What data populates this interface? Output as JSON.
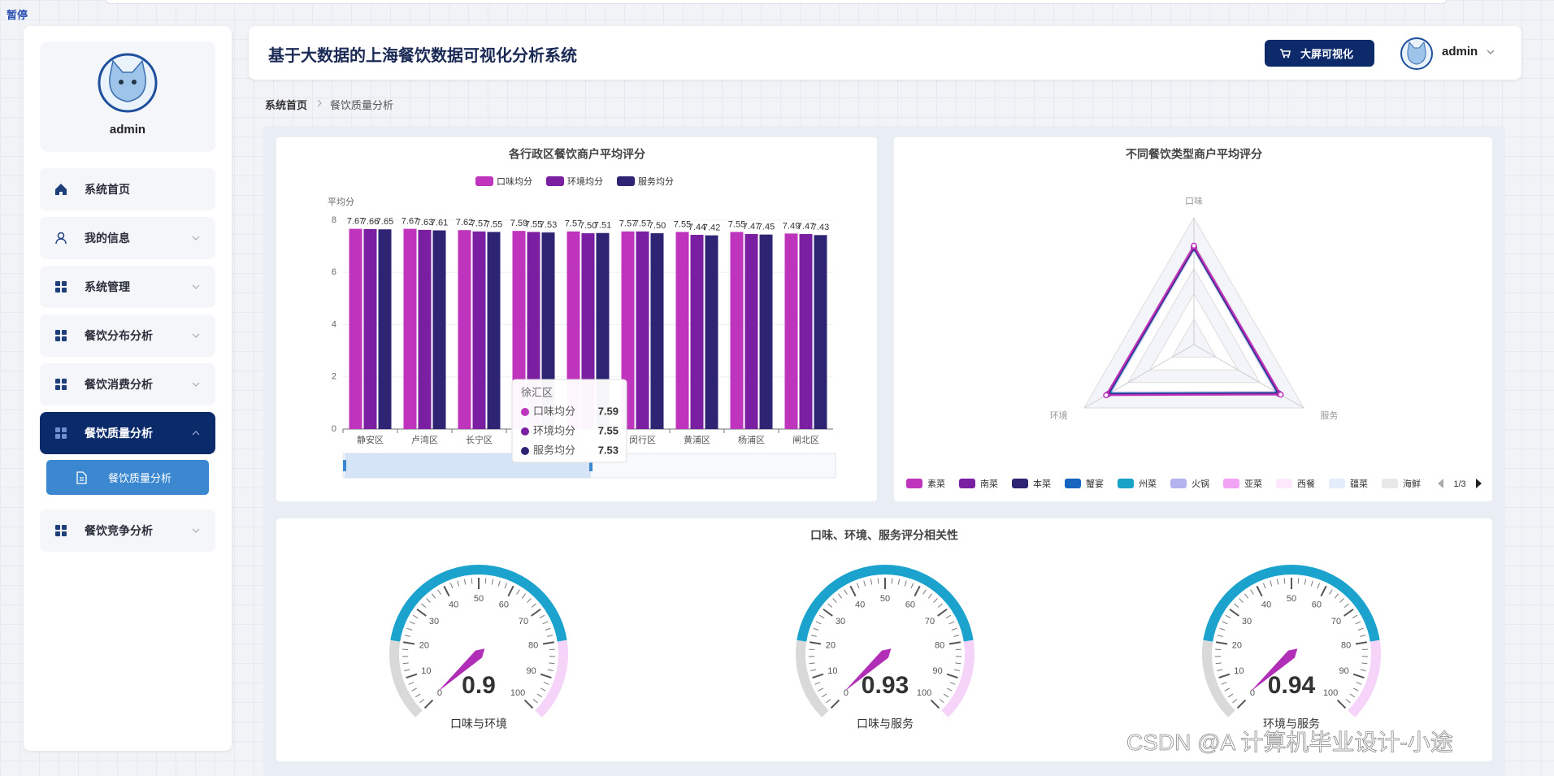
{
  "overlay_text": "暂停",
  "sidebar": {
    "username": "admin",
    "menu": [
      "系统首页",
      "我的信息",
      "系统管理",
      "餐饮分布分析",
      "餐饮消费分析",
      "餐饮质量分析",
      "餐饮竞争分析"
    ],
    "active_menu": 5,
    "submenu": [
      "餐饮质量分析"
    ]
  },
  "header": {
    "title": "基于大数据的上海餐饮数据可视化分析系统",
    "button": "大屏可视化",
    "user": "admin"
  },
  "breadcrumb": [
    "系统首页",
    "餐饮质量分析"
  ],
  "chart_data": [
    {
      "type": "bar",
      "title": "各行政区餐饮商户平均评分",
      "y_label": "平均分",
      "categories": [
        "静安区",
        "卢湾区",
        "长宁区",
        "徐汇区",
        null,
        "闵行区",
        "黄浦区",
        "杨浦区",
        "闸北区"
      ],
      "series": [
        {
          "name": "口味均分",
          "color": "#bf34bc",
          "values": [
            7.67,
            7.67,
            7.62,
            7.59,
            7.57,
            7.57,
            7.55,
            7.55,
            7.49
          ],
          "value_labels": [
            "7.67",
            "7.67",
            "7.62",
            "7.59",
            "7.57",
            "7.57",
            "7.55",
            "7.55",
            "7.49"
          ]
        },
        {
          "name": "环境均分",
          "color": "#7b1fa2",
          "values": [
            7.66,
            7.63,
            7.57,
            7.55,
            7.5,
            7.57,
            7.44,
            7.47,
            7.47
          ],
          "value_labels": [
            "7.66",
            "7.63",
            "7.57",
            "7.55",
            "7.50",
            "7.57",
            "7.44",
            "7.47",
            "7.47"
          ]
        },
        {
          "name": "服务均分",
          "color": "#2e2474",
          "values": [
            7.65,
            7.61,
            7.55,
            7.53,
            7.51,
            7.5,
            7.42,
            7.45,
            7.43
          ],
          "value_labels": [
            "7.65",
            "7.61",
            "7.55",
            "7.53",
            "7.51",
            "7.50",
            "7.42",
            "7.45",
            "7.43"
          ]
        }
      ],
      "ylim": [
        0,
        8
      ],
      "yticks": [
        0,
        2,
        4,
        6,
        8
      ],
      "grid": true,
      "datazoom": true,
      "tooltip_index": 3
    },
    {
      "type": "radar",
      "title": "不同餐饮类型商户平均评分",
      "indicators": [
        "口味",
        "服务",
        "环境"
      ],
      "rlim": [
        0,
        10
      ],
      "legend_page": "1/3",
      "series": [
        {
          "name": "素菜",
          "color": "#bf34bc",
          "values": [
            7.8,
            7.9,
            8.0
          ]
        },
        {
          "name": "南菜",
          "color": "#7b1fa2",
          "values": [
            7.7,
            7.8,
            7.9
          ]
        },
        {
          "name": "本菜",
          "color": "#2e2474",
          "values": [
            7.6,
            7.7,
            7.8
          ]
        },
        {
          "name": "蟹宴",
          "color": "#1565c0",
          "values": [
            7.7,
            7.7,
            7.8
          ]
        },
        {
          "name": "州菜",
          "color": "#19a3c9",
          "values": [
            7.6,
            7.6,
            7.7
          ]
        },
        {
          "name": "火锅",
          "color": "#b3b3f0",
          "values": [
            7.5,
            7.6,
            7.6
          ]
        },
        {
          "name": "亚菜",
          "color": "#f3a3f3",
          "values": [
            7.6,
            7.5,
            7.6
          ]
        },
        {
          "name": "西餐",
          "color": "#fde8fb",
          "values": [
            7.5,
            7.5,
            7.5
          ]
        },
        {
          "name": "疆菜",
          "color": "#e3ecfa",
          "values": [
            7.4,
            7.5,
            7.5
          ]
        },
        {
          "name": "海鲜",
          "color": "#e8e8e8",
          "values": [
            7.4,
            7.4,
            7.5
          ]
        }
      ]
    },
    {
      "type": "gauge",
      "title": "口味、环境、服务评分相关性",
      "categories": [
        "口味与环境",
        "口味与服务",
        "环境与服务"
      ],
      "values": [
        0.9,
        0.93,
        0.94
      ],
      "ylim": [
        0,
        100
      ],
      "yticks": [
        0,
        10,
        20,
        30,
        40,
        50,
        60,
        70,
        80,
        90,
        100
      ],
      "axis_colors": [
        [
          0.2,
          "#d9d9d9"
        ],
        [
          0.8,
          "#1ba3cd"
        ],
        [
          1,
          "#f6d3f8"
        ]
      ],
      "pointer_color": "#b12fb6"
    }
  ],
  "watermark": "CSDN @A 计算机毕业设计-小途"
}
